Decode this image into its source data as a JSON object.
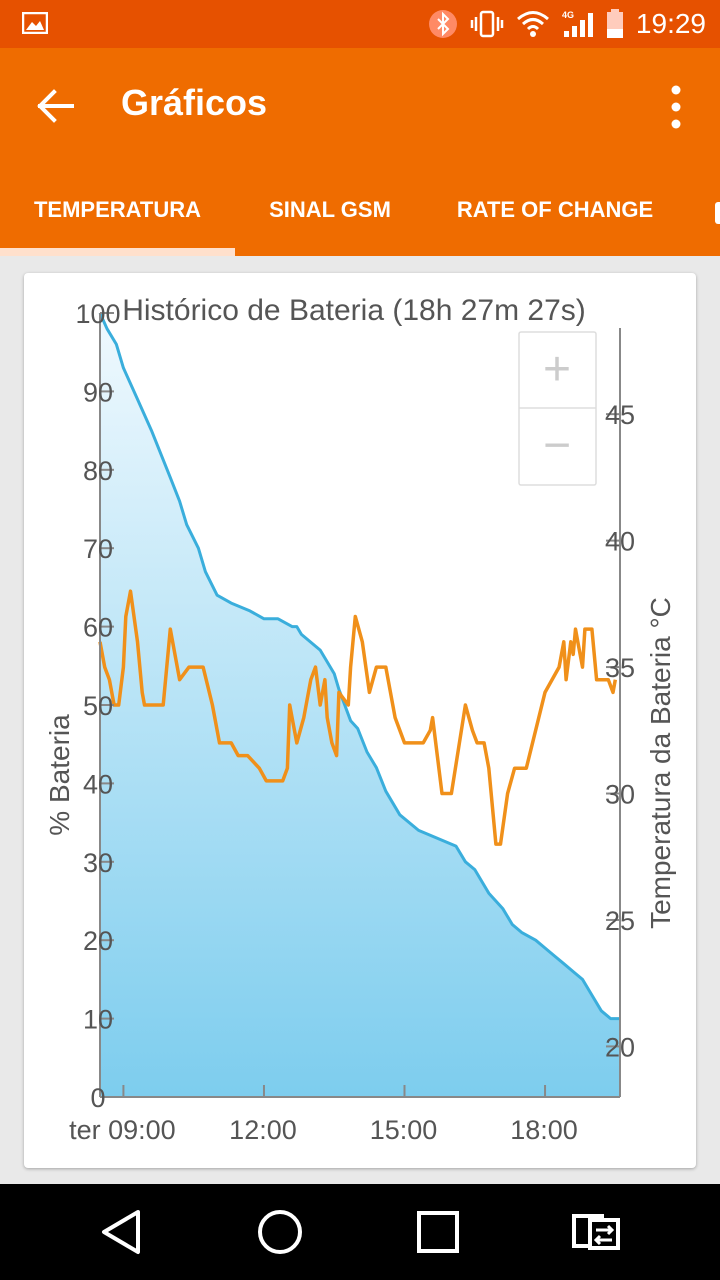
{
  "status_bar": {
    "time": "19:29",
    "network": "4G",
    "icons": [
      "image-notification-icon",
      "bluetooth-icon",
      "vibrate-icon",
      "wifi-icon",
      "signal-4g-icon",
      "battery-icon"
    ]
  },
  "app_bar": {
    "title": "Gráficos",
    "back_icon": "arrow-back-icon",
    "menu_icon": "more-vert-icon",
    "tabs": [
      {
        "label": "TEMPERATURA",
        "selected": true
      },
      {
        "label": "SINAL GSM",
        "selected": false
      },
      {
        "label": "RATE OF CHANGE",
        "selected": false
      }
    ]
  },
  "colors": {
    "status_bar": "#e65100",
    "app_bar": "#ef6c00",
    "battery_line": "#3aaedc",
    "temperature_line": "#f0901a"
  },
  "zoom": {
    "plus_label": "+",
    "minus_label": "−"
  },
  "chart_data": {
    "type": "line",
    "title": "Histórico de Bateria (18h 27m 27s)",
    "ylabel": "% Bateria",
    "y2label": "Temperatura da Bateria °C",
    "ylim": [
      0,
      100
    ],
    "y2lim": [
      18,
      49
    ],
    "xlim": [
      8.5,
      19.6
    ],
    "x_tick_labels": [
      {
        "value": 9,
        "label": "ter 09:00"
      },
      {
        "value": 12,
        "label": "12:00"
      },
      {
        "value": 15,
        "label": "15:00"
      },
      {
        "value": 18,
        "label": "18:00"
      }
    ],
    "y_ticks": [
      0,
      10,
      20,
      30,
      40,
      50,
      60,
      70,
      80,
      90,
      100
    ],
    "y2_ticks": [
      20,
      25,
      30,
      35,
      40,
      45
    ],
    "series": [
      {
        "name": "% Bateria",
        "axis": "left",
        "area": true,
        "x": [
          8.5,
          8.65,
          8.85,
          9.0,
          9.3,
          9.6,
          9.8,
          10.0,
          10.2,
          10.35,
          10.6,
          10.75,
          11.0,
          11.3,
          11.7,
          12.0,
          12.3,
          12.6,
          12.7,
          12.8,
          13.2,
          13.5,
          13.6,
          13.85,
          14.0,
          14.2,
          14.4,
          14.6,
          14.9,
          15.3,
          15.7,
          16.1,
          16.3,
          16.5,
          16.8,
          17.1,
          17.3,
          17.5,
          17.8,
          18.0,
          18.2,
          18.4,
          18.6,
          18.8,
          19.0,
          19.2,
          19.4,
          19.5,
          19.6
        ],
        "y": [
          100,
          98,
          96,
          93,
          89,
          85,
          82,
          79,
          76,
          73,
          70,
          67,
          64,
          63,
          62,
          61,
          61,
          60,
          60,
          59,
          57,
          54,
          52,
          48,
          47,
          44,
          42,
          39,
          36,
          34,
          33,
          32,
          30,
          29,
          26,
          24,
          22,
          21,
          20,
          19,
          18,
          17,
          16,
          15,
          13,
          11,
          10,
          10,
          10
        ]
      },
      {
        "name": "Temperatura da Bateria °C",
        "axis": "right",
        "area": false,
        "x": [
          8.5,
          8.6,
          8.7,
          8.8,
          8.9,
          9.0,
          9.05,
          9.15,
          9.3,
          9.4,
          9.45,
          9.55,
          9.7,
          9.85,
          10.0,
          10.2,
          10.4,
          10.5,
          10.6,
          10.7,
          10.9,
          11.05,
          11.15,
          11.3,
          11.45,
          11.65,
          11.9,
          12.05,
          12.2,
          12.4,
          12.5,
          12.55,
          12.7,
          12.85,
          13.0,
          13.1,
          13.2,
          13.3,
          13.35,
          13.45,
          13.55,
          13.6,
          13.8,
          13.85,
          13.95,
          14.1,
          14.25,
          14.4,
          14.6,
          14.8,
          15.0,
          15.2,
          15.4,
          15.55,
          15.6,
          15.7,
          15.8,
          16.0,
          16.3,
          16.45,
          16.55,
          16.7,
          16.8,
          16.95,
          17.05,
          17.2,
          17.35,
          17.45,
          17.5,
          17.55,
          17.6,
          18.0,
          18.3,
          18.4,
          18.45,
          18.55,
          18.6,
          18.65,
          18.7,
          18.8,
          18.85,
          19.0,
          19.1,
          19.2,
          19.35,
          19.45,
          19.5
        ],
        "y": [
          36,
          35,
          34.5,
          33.5,
          33.5,
          35,
          37,
          38,
          36,
          34,
          33.5,
          33.5,
          33.5,
          33.5,
          36.5,
          34.5,
          35,
          35,
          35,
          35,
          33.5,
          32,
          32,
          32,
          31.5,
          31.5,
          31,
          30.5,
          30.5,
          30.5,
          31,
          33.5,
          32,
          33,
          34.5,
          35,
          33.5,
          34.5,
          33,
          32,
          31.5,
          34,
          33.5,
          35,
          37,
          36,
          34,
          35,
          35,
          33,
          32,
          32,
          32,
          32.5,
          33,
          31.5,
          30,
          30,
          33.5,
          32.5,
          32,
          32,
          31,
          28,
          28,
          30,
          31,
          31,
          31,
          31,
          31,
          34,
          35,
          36,
          34.5,
          36,
          35.5,
          36.5,
          36,
          35,
          36.5,
          36.5,
          34.5,
          34.5,
          34.5,
          34,
          34.5
        ]
      }
    ],
    "legend": "none",
    "grid": false
  }
}
